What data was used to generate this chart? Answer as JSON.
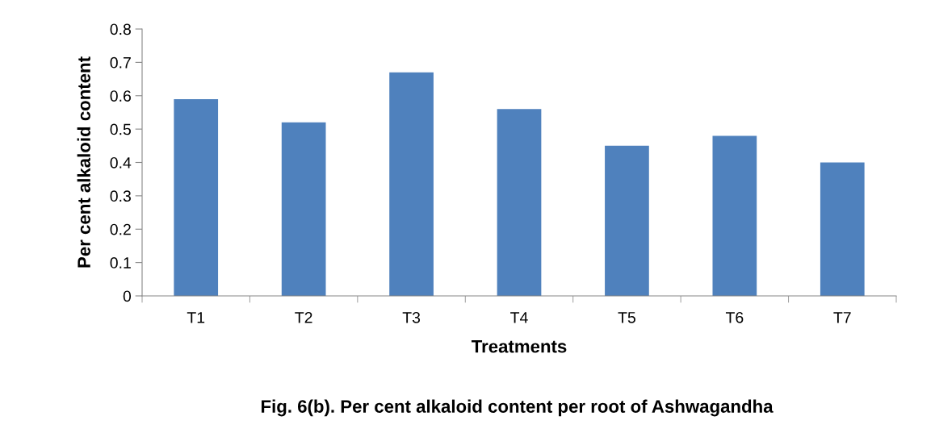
{
  "chart_data": {
    "type": "bar",
    "xlabel": "Treatments",
    "ylabel": "Per cent alkaloid content",
    "categories": [
      "T1",
      "T2",
      "T3",
      "T4",
      "T5",
      "T6",
      "T7"
    ],
    "values": [
      0.59,
      0.52,
      0.67,
      0.56,
      0.45,
      0.48,
      0.4
    ],
    "color": "#4f81bd",
    "ylim": [
      0,
      0.8
    ],
    "yticks": [
      0,
      0.1,
      0.2,
      0.3,
      0.4,
      0.5,
      0.6,
      0.7,
      0.8
    ],
    "grid": false,
    "legend": false,
    "annotations": [
      "Fig. 6(b). Per cent alkaloid content per root of Ashwagandha"
    ]
  }
}
